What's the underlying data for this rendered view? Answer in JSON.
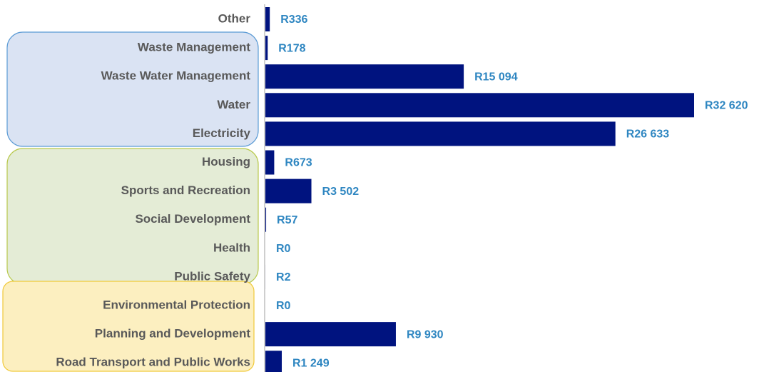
{
  "chart_data": {
    "type": "bar",
    "orientation": "horizontal",
    "color": "#00137f",
    "categories": [
      "Other",
      "Waste Management",
      "Waste Water Management",
      "Water",
      "Electricity",
      "Housing",
      "Sports and Recreation",
      "Social Development",
      "Health",
      "Public Safety",
      "Environmental Protection",
      "Planning and Development",
      "Road Transport and Public Works"
    ],
    "values": [
      336,
      178,
      15094,
      32620,
      26633,
      673,
      3502,
      57,
      0,
      2,
      0,
      9930,
      1249
    ],
    "value_labels": [
      "R336",
      "R178",
      "R15 094",
      "R32 620",
      "R26 633",
      "R673",
      "R3 502",
      "R57",
      "R0",
      "R2",
      "R0",
      "R9 930",
      "R1 249"
    ]
  }
}
